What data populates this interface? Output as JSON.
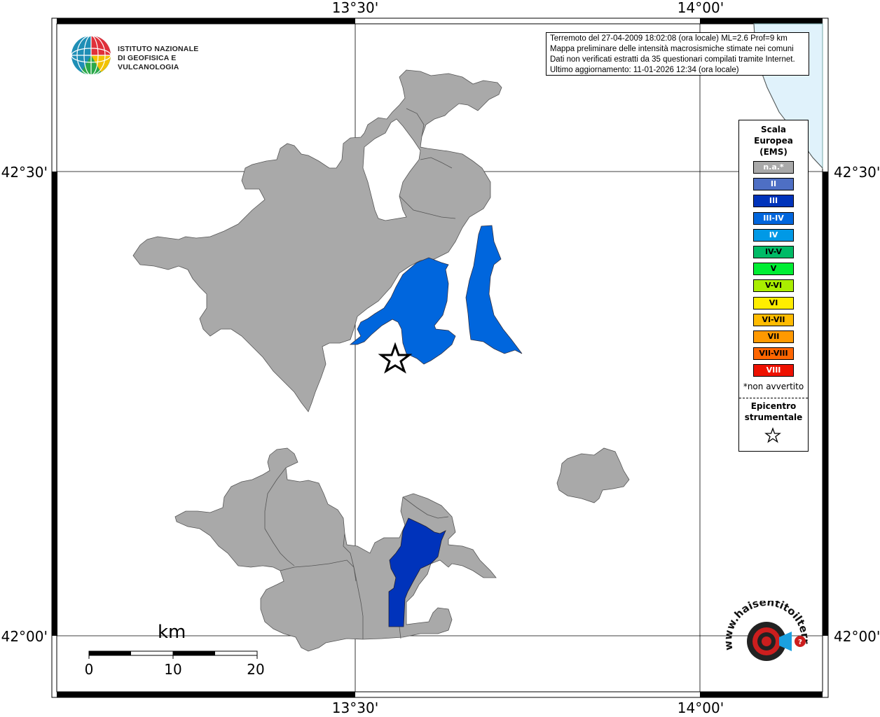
{
  "map": {
    "lon_labels": [
      "13°30'",
      "14°00'"
    ],
    "lat_labels": [
      "42°30'",
      "42°00'"
    ]
  },
  "info_box": {
    "lines": [
      "Terremoto del 27-04-2009 18:02:08 (ora locale) ML=2.6 Prof=9 km",
      "Mappa preliminare delle intensità macrosismiche stimate nei comuni",
      "Dati non verificati estratti da 35 questionari compilati tramite Internet.",
      "Ultimo aggiornamento: 11-01-2026 12:34 (ora locale)"
    ]
  },
  "logo": {
    "line1": "ISTITUTO NAZIONALE",
    "line2": "DI GEOFISICA E VULCANOLOGIA"
  },
  "legend": {
    "title_lines": [
      "Scala",
      "Europea",
      "(EMS)"
    ],
    "items": [
      {
        "label": "n.a.*",
        "color": "#a9a9a9",
        "text_color": "#ffffff"
      },
      {
        "label": "II",
        "color": "#4e6fc4",
        "text_color": "#ffffff"
      },
      {
        "label": "III",
        "color": "#0033bb",
        "text_color": "#ffffff"
      },
      {
        "label": "III-IV",
        "color": "#0066dd",
        "text_color": "#ffffff"
      },
      {
        "label": "IV",
        "color": "#0099e6",
        "text_color": "#ffffff"
      },
      {
        "label": "IV-V",
        "color": "#00bb66",
        "text_color": "#000000"
      },
      {
        "label": "V",
        "color": "#00ee33",
        "text_color": "#000000"
      },
      {
        "label": "V-VI",
        "color": "#aaee00",
        "text_color": "#000000"
      },
      {
        "label": "VI",
        "color": "#ffee00",
        "text_color": "#000000"
      },
      {
        "label": "VI-VII",
        "color": "#ffbb00",
        "text_color": "#000000"
      },
      {
        "label": "VII",
        "color": "#ff9900",
        "text_color": "#000000"
      },
      {
        "label": "VII-VIII",
        "color": "#ff6600",
        "text_color": "#000000"
      },
      {
        "label": "VIII",
        "color": "#ee1100",
        "text_color": "#ffffff"
      }
    ],
    "not_felt_note": "*non avvertito",
    "epicenter_lines": [
      "Epicentro",
      "strumentale"
    ]
  },
  "scale_bar": {
    "unit": "km",
    "labels": [
      "0",
      "10",
      "20"
    ]
  },
  "colors": {
    "na_gray": "#a9a9a9",
    "intensity_III": "#0033bb",
    "intensity_III_IV": "#0066dd",
    "sea": "#e0f2fb",
    "site_red": "#d91a1a"
  },
  "hsit_logo": {
    "text": "www.haisentitoilterremoto.it"
  }
}
